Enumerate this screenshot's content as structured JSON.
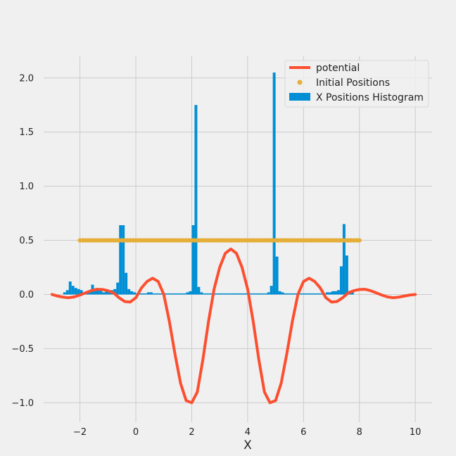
{
  "chart_data": {
    "type": "line",
    "title": "",
    "xlabel": "X",
    "ylabel": "",
    "xlim": [
      -3.3,
      10.6
    ],
    "ylim": [
      -1.18,
      2.2
    ],
    "xticks": [
      -2,
      0,
      2,
      4,
      6,
      8,
      10
    ],
    "xtick_labels": [
      "−2",
      "0",
      "2",
      "4",
      "6",
      "8",
      "10"
    ],
    "yticks": [
      -1.0,
      -0.5,
      0.0,
      0.5,
      1.0,
      1.5,
      2.0
    ],
    "ytick_labels": [
      "−1.0",
      "−0.5",
      "0.0",
      "0.5",
      "1.0",
      "1.5",
      "2.0"
    ],
    "grid": true,
    "legend_position": "top-right",
    "colors": {
      "potential": "#fc4f30",
      "initial_positions": "#e5ae38",
      "histogram": "#008fd5",
      "grid": "#cbcbcb",
      "background": "#f0f0f0"
    },
    "series": [
      {
        "name": "potential",
        "kind": "line",
        "x": [
          -3.0,
          -2.8,
          -2.6,
          -2.4,
          -2.2,
          -2.0,
          -1.8,
          -1.6,
          -1.4,
          -1.2,
          -1.0,
          -0.8,
          -0.6,
          -0.4,
          -0.2,
          0.0,
          0.2,
          0.4,
          0.6,
          0.8,
          1.0,
          1.2,
          1.4,
          1.6,
          1.8,
          2.0,
          2.2,
          2.4,
          2.6,
          2.8,
          3.0,
          3.2,
          3.4,
          3.6,
          3.8,
          4.0,
          4.2,
          4.4,
          4.6,
          4.8,
          5.0,
          5.2,
          5.4,
          5.6,
          5.8,
          6.0,
          6.2,
          6.4,
          6.6,
          6.8,
          7.0,
          7.2,
          7.4,
          7.6,
          7.8,
          8.0,
          8.2,
          8.4,
          8.6,
          8.8,
          9.0,
          9.2,
          9.4,
          9.6,
          9.8,
          10.0
        ],
        "y": [
          0.0,
          -0.015,
          -0.025,
          -0.03,
          -0.022,
          -0.005,
          0.015,
          0.035,
          0.048,
          0.046,
          0.035,
          0.015,
          -0.03,
          -0.065,
          -0.07,
          -0.03,
          0.06,
          0.12,
          0.15,
          0.12,
          0.0,
          -0.25,
          -0.55,
          -0.82,
          -0.98,
          -1.0,
          -0.9,
          -0.6,
          -0.25,
          0.05,
          0.25,
          0.38,
          0.42,
          0.38,
          0.25,
          0.05,
          -0.25,
          -0.6,
          -0.9,
          -1.0,
          -0.98,
          -0.82,
          -0.55,
          -0.25,
          0.0,
          0.12,
          0.15,
          0.12,
          0.06,
          -0.03,
          -0.07,
          -0.065,
          -0.03,
          0.015,
          0.035,
          0.046,
          0.048,
          0.035,
          0.015,
          -0.005,
          -0.022,
          -0.03,
          -0.025,
          -0.015,
          -0.005,
          0.0
        ]
      },
      {
        "name": "Initial Positions",
        "kind": "scatter",
        "x_start": -2.0,
        "x_end": 8.0,
        "count": 101,
        "y": 0.5
      },
      {
        "name": "X Positions Histogram",
        "kind": "bar",
        "bin_width": 0.1,
        "bin_starts": [
          -2.6,
          -2.5,
          -2.4,
          -2.3,
          -2.2,
          -2.1,
          -2.0,
          -1.9,
          -1.8,
          -1.7,
          -1.6,
          -1.5,
          -1.4,
          -1.3,
          -1.2,
          -1.1,
          -1.0,
          -0.9,
          -0.8,
          -0.7,
          -0.6,
          -0.5,
          -0.4,
          -0.3,
          -0.2,
          -0.1,
          0.0,
          0.1,
          0.2,
          0.3,
          0.4,
          0.5,
          0.6,
          0.7,
          0.8,
          0.9,
          1.0,
          1.1,
          1.2,
          1.3,
          1.4,
          1.5,
          1.6,
          1.7,
          1.8,
          1.9,
          2.0,
          2.1,
          2.2,
          2.3,
          2.4,
          2.5,
          2.6,
          2.7,
          2.8,
          2.9,
          3.0,
          3.1,
          3.2,
          3.3,
          3.4,
          3.5,
          3.6,
          3.7,
          3.8,
          3.9,
          4.0,
          4.1,
          4.2,
          4.3,
          4.4,
          4.5,
          4.6,
          4.7,
          4.8,
          4.9,
          5.0,
          5.1,
          5.2,
          5.3,
          5.4,
          5.5,
          5.6,
          5.7,
          5.8,
          5.9,
          6.0,
          6.1,
          6.2,
          6.3,
          6.4,
          6.5,
          6.6,
          6.7,
          6.8,
          6.9,
          7.0,
          7.1,
          7.2,
          7.3,
          7.4,
          7.5,
          7.6,
          7.7
        ],
        "values": [
          0.02,
          0.04,
          0.12,
          0.08,
          0.06,
          0.05,
          0.04,
          0.02,
          0.03,
          0.04,
          0.09,
          0.05,
          0.05,
          0.04,
          0.02,
          0.03,
          0.03,
          0.04,
          0.05,
          0.11,
          0.64,
          0.64,
          0.2,
          0.05,
          0.03,
          0.02,
          0.01,
          0.01,
          0.01,
          0.01,
          0.02,
          0.02,
          0.01,
          0.01,
          0.01,
          0.01,
          0.01,
          0.01,
          0.01,
          0.01,
          0.01,
          0.01,
          0.01,
          0.01,
          0.02,
          0.03,
          0.64,
          1.75,
          0.07,
          0.02,
          0.01,
          0.01,
          0.01,
          0.01,
          0.01,
          0.01,
          0.01,
          0.01,
          0.01,
          0.01,
          0.01,
          0.01,
          0.01,
          0.01,
          0.01,
          0.01,
          0.01,
          0.01,
          0.01,
          0.01,
          0.01,
          0.01,
          0.01,
          0.02,
          0.08,
          2.05,
          0.35,
          0.03,
          0.02,
          0.01,
          0.01,
          0.01,
          0.01,
          0.01,
          0.01,
          0.01,
          0.01,
          0.01,
          0.01,
          0.01,
          0.01,
          0.01,
          0.01,
          0.01,
          0.02,
          0.02,
          0.03,
          0.03,
          0.04,
          0.26,
          0.65,
          0.36,
          0.03,
          0.02
        ]
      }
    ]
  }
}
